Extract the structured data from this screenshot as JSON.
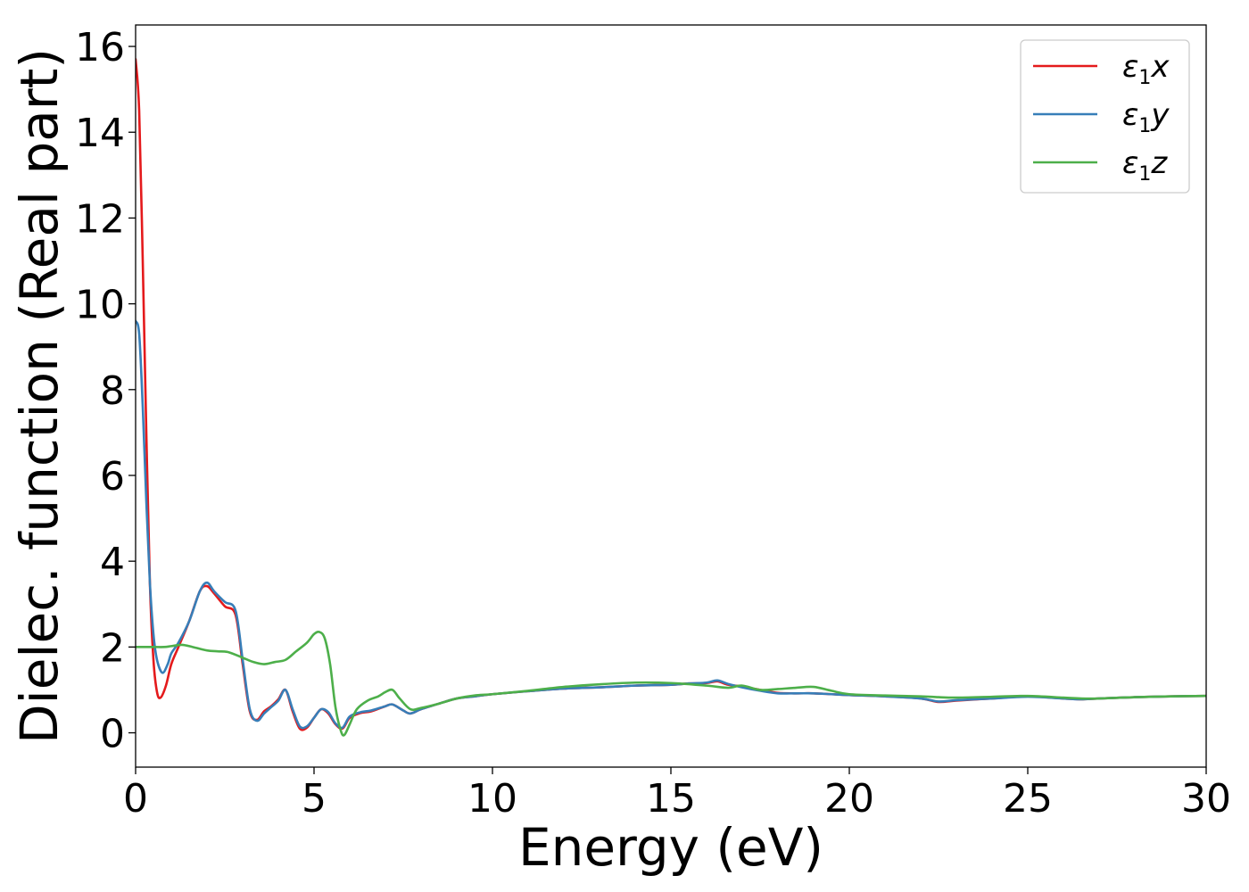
{
  "chart_data": {
    "type": "line",
    "title": "",
    "xlabel": "Energy (eV)",
    "ylabel": "Dielec. function (Real part)",
    "xlim": [
      0,
      30
    ],
    "ylim": [
      -0.8,
      16.5
    ],
    "xticks": [
      0,
      5,
      10,
      15,
      20,
      25,
      30
    ],
    "xtick_labels": [
      "0",
      "5",
      "10",
      "15",
      "20",
      "25",
      "30"
    ],
    "yticks": [
      0,
      2,
      4,
      6,
      8,
      10,
      12,
      14,
      16
    ],
    "ytick_labels": [
      "0",
      "2",
      "4",
      "6",
      "8",
      "10",
      "12",
      "14",
      "16"
    ],
    "grid": false,
    "legend_position": "top-right",
    "series": [
      {
        "name": "ε1x",
        "legend_main": "ε",
        "legend_sub": "1",
        "legend_var": "x",
        "color": "#e41a1c",
        "x": [
          0,
          0.1,
          0.2,
          0.3,
          0.4,
          0.5,
          0.6,
          0.7,
          0.85,
          1.0,
          1.2,
          1.5,
          1.8,
          2.0,
          2.2,
          2.5,
          2.8,
          3.0,
          3.2,
          3.4,
          3.6,
          3.8,
          4.0,
          4.2,
          4.4,
          4.6,
          4.8,
          5.0,
          5.2,
          5.4,
          5.6,
          5.8,
          6.0,
          6.3,
          6.6,
          7.0,
          7.2,
          7.5,
          7.7,
          8.0,
          8.5,
          9.0,
          9.5,
          10,
          11,
          12,
          13,
          14,
          15,
          15.5,
          16,
          16.3,
          16.6,
          17,
          17.5,
          18,
          18.5,
          19,
          19.5,
          20,
          21,
          22,
          22.5,
          23,
          24,
          25,
          26,
          26.5,
          27,
          28,
          29,
          30
        ],
        "y": [
          15.7,
          14.5,
          11.0,
          7.0,
          3.5,
          1.7,
          0.95,
          0.82,
          1.1,
          1.6,
          2.0,
          2.6,
          3.3,
          3.42,
          3.25,
          2.95,
          2.75,
          1.6,
          0.5,
          0.3,
          0.5,
          0.62,
          0.78,
          1.0,
          0.5,
          0.1,
          0.12,
          0.35,
          0.55,
          0.45,
          0.2,
          0.1,
          0.35,
          0.46,
          0.5,
          0.62,
          0.66,
          0.52,
          0.45,
          0.55,
          0.68,
          0.8,
          0.85,
          0.9,
          0.97,
          1.03,
          1.06,
          1.1,
          1.12,
          1.15,
          1.16,
          1.2,
          1.12,
          1.08,
          1.0,
          0.93,
          0.92,
          0.92,
          0.9,
          0.88,
          0.85,
          0.8,
          0.72,
          0.75,
          0.8,
          0.85,
          0.8,
          0.78,
          0.8,
          0.83,
          0.85,
          0.86
        ]
      },
      {
        "name": "ε1y",
        "legend_main": "ε",
        "legend_sub": "1",
        "legend_var": "y",
        "color": "#377eb8",
        "x": [
          0,
          0.1,
          0.2,
          0.3,
          0.4,
          0.5,
          0.6,
          0.75,
          0.9,
          1.0,
          1.2,
          1.5,
          1.8,
          2.0,
          2.2,
          2.5,
          2.8,
          3.0,
          3.2,
          3.4,
          3.6,
          3.8,
          4.0,
          4.2,
          4.4,
          4.6,
          4.8,
          5.0,
          5.2,
          5.4,
          5.6,
          5.8,
          6.0,
          6.3,
          6.6,
          7.0,
          7.2,
          7.5,
          7.7,
          8.0,
          8.5,
          9.0,
          9.5,
          10,
          11,
          12,
          13,
          14,
          15,
          15.5,
          16,
          16.3,
          16.6,
          17,
          17.5,
          18,
          18.5,
          19,
          19.5,
          20,
          21,
          22,
          22.5,
          23,
          24,
          25,
          26,
          26.5,
          27,
          28,
          29,
          30
        ],
        "y": [
          9.6,
          9.3,
          7.6,
          5.4,
          3.5,
          2.3,
          1.7,
          1.4,
          1.6,
          1.85,
          2.1,
          2.6,
          3.3,
          3.5,
          3.3,
          3.05,
          2.85,
          1.7,
          0.55,
          0.28,
          0.45,
          0.6,
          0.75,
          1.0,
          0.55,
          0.15,
          0.15,
          0.35,
          0.55,
          0.48,
          0.22,
          0.12,
          0.38,
          0.48,
          0.52,
          0.62,
          0.66,
          0.52,
          0.45,
          0.55,
          0.68,
          0.8,
          0.85,
          0.9,
          0.97,
          1.03,
          1.06,
          1.1,
          1.12,
          1.15,
          1.17,
          1.22,
          1.14,
          1.06,
          0.98,
          0.92,
          0.92,
          0.92,
          0.9,
          0.88,
          0.85,
          0.8,
          0.73,
          0.76,
          0.8,
          0.84,
          0.8,
          0.78,
          0.8,
          0.83,
          0.85,
          0.86
        ]
      },
      {
        "name": "ε1z",
        "legend_main": "ε",
        "legend_sub": "1",
        "legend_var": "z",
        "color": "#4daf4a",
        "x": [
          0,
          0.5,
          0.8,
          1.0,
          1.3,
          1.6,
          2.0,
          2.3,
          2.6,
          3.0,
          3.3,
          3.6,
          3.9,
          4.2,
          4.5,
          4.8,
          5.0,
          5.15,
          5.3,
          5.45,
          5.6,
          5.75,
          5.85,
          6.0,
          6.2,
          6.5,
          6.8,
          7.0,
          7.2,
          7.4,
          7.7,
          8.0,
          8.5,
          9.0,
          9.5,
          10,
          11,
          12,
          13,
          14,
          15,
          16,
          16.6,
          17,
          17.5,
          18,
          18.5,
          19,
          19.5,
          20,
          21,
          22,
          22.5,
          23,
          24,
          25,
          26,
          26.5,
          27,
          28,
          29,
          30
        ],
        "y": [
          2.0,
          2.0,
          2.0,
          2.02,
          2.05,
          2.0,
          1.92,
          1.9,
          1.88,
          1.75,
          1.65,
          1.6,
          1.65,
          1.7,
          1.9,
          2.1,
          2.3,
          2.35,
          2.2,
          1.6,
          0.6,
          0.05,
          -0.05,
          0.2,
          0.55,
          0.75,
          0.85,
          0.95,
          1.0,
          0.8,
          0.55,
          0.58,
          0.68,
          0.8,
          0.87,
          0.9,
          0.98,
          1.07,
          1.13,
          1.17,
          1.16,
          1.1,
          1.05,
          1.1,
          1.0,
          1.02,
          1.05,
          1.07,
          0.98,
          0.9,
          0.87,
          0.85,
          0.83,
          0.82,
          0.84,
          0.86,
          0.82,
          0.8,
          0.8,
          0.83,
          0.85,
          0.86
        ]
      }
    ]
  }
}
